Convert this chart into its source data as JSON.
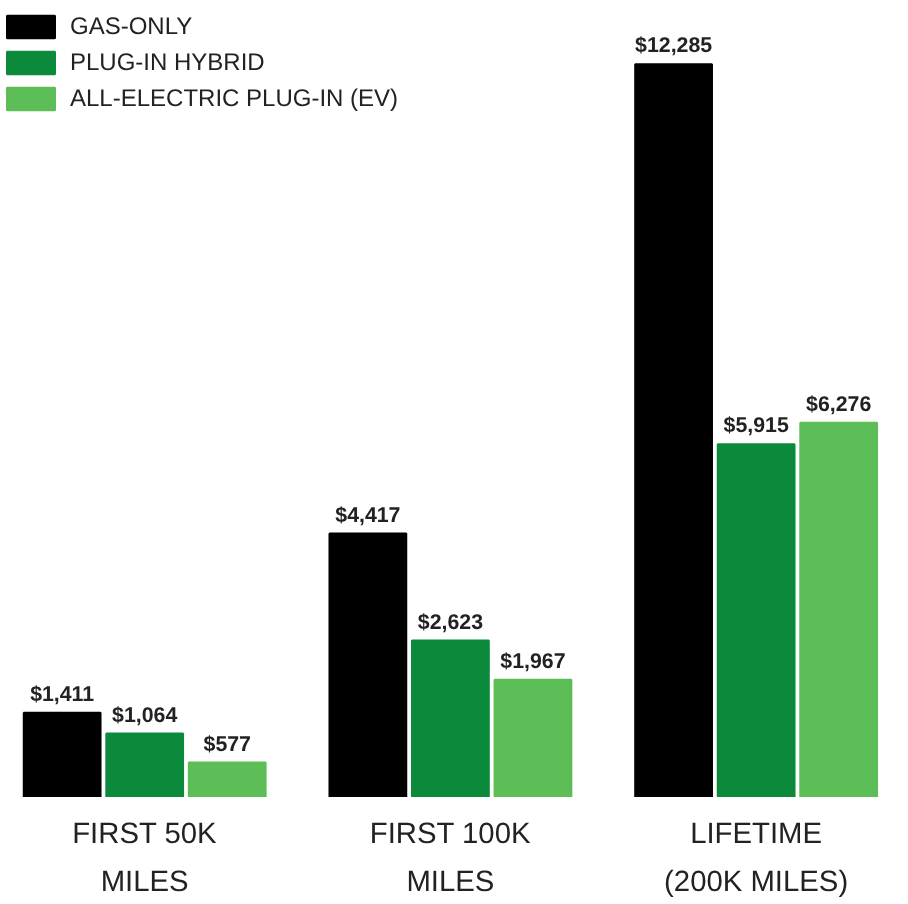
{
  "chart_data": {
    "type": "bar",
    "categories": [
      "FIRST 50K\nMILES",
      "FIRST 100K\nMILES",
      "LIFETIME\n(200K MILES)"
    ],
    "series": [
      {
        "name": "GAS-ONLY",
        "color": "#000000",
        "values": [
          1411,
          4417,
          12285
        ],
        "value_labels": [
          "$1,411",
          "$4,417",
          "$12,285"
        ]
      },
      {
        "name": "PLUG-IN HYBRID",
        "color": "#0b8a3c",
        "values": [
          1064,
          2623,
          5915
        ],
        "value_labels": [
          "$1,064",
          "$2,623",
          "$5,915"
        ]
      },
      {
        "name": "ALL-ELECTRIC PLUG-IN (EV)",
        "color": "#5dbd56",
        "values": [
          577,
          1967,
          6276
        ],
        "value_labels": [
          "$577",
          "$1,967",
          "$6,276"
        ]
      }
    ],
    "legend": "top left",
    "grid": false,
    "tick_labels": "x"
  }
}
